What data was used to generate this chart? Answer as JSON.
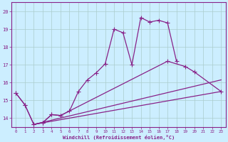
{
  "color": "#882288",
  "bg_color": "#cceeff",
  "grid_color": "#aacccc",
  "xlabel": "Windchill (Refroidissement éolien,°C)",
  "ylim": [
    13.5,
    20.5
  ],
  "xlim": [
    -0.5,
    23.5
  ],
  "yticks": [
    14,
    15,
    16,
    17,
    18,
    19,
    20
  ],
  "xticks": [
    0,
    1,
    2,
    3,
    4,
    5,
    6,
    7,
    8,
    9,
    10,
    11,
    12,
    13,
    14,
    15,
    16,
    17,
    18,
    19,
    20,
    21,
    22,
    23
  ],
  "line1_x": [
    0,
    1,
    2,
    3,
    4,
    5,
    6,
    7,
    8,
    9,
    10,
    11,
    12,
    13,
    14,
    15,
    16,
    17,
    18
  ],
  "line1_y": [
    15.4,
    14.75,
    13.65,
    13.75,
    14.2,
    14.15,
    14.4,
    15.5,
    16.15,
    16.55,
    17.05,
    19.0,
    18.8,
    17.0,
    19.65,
    19.4,
    19.5,
    19.35,
    17.2
  ],
  "line2_x": [
    0,
    1,
    2,
    3,
    4,
    5,
    17,
    19,
    20,
    23
  ],
  "line2_y": [
    15.4,
    14.75,
    13.65,
    13.75,
    14.2,
    14.15,
    17.2,
    16.9,
    16.6,
    15.5
  ],
  "line3_x": [
    2,
    23
  ],
  "line3_y": [
    13.65,
    15.5
  ],
  "line4_x": [
    2,
    23
  ],
  "line4_y": [
    13.65,
    16.15
  ]
}
